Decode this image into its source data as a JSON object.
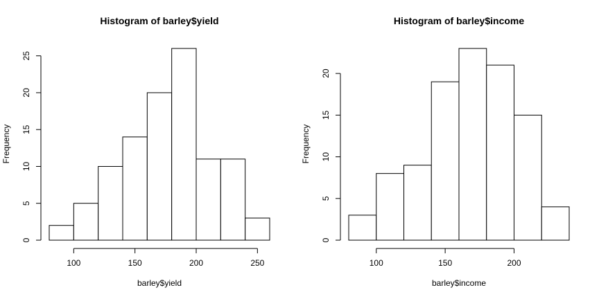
{
  "chart_data": [
    {
      "type": "histogram",
      "title": "Histogram of barley$yield",
      "xlabel": "barley$yield",
      "ylabel": "Frequency",
      "bins": [
        {
          "start": 80,
          "end": 100,
          "count": 2
        },
        {
          "start": 100,
          "end": 120,
          "count": 5
        },
        {
          "start": 120,
          "end": 140,
          "count": 10
        },
        {
          "start": 140,
          "end": 160,
          "count": 14
        },
        {
          "start": 160,
          "end": 180,
          "count": 20
        },
        {
          "start": 180,
          "end": 200,
          "count": 26
        },
        {
          "start": 200,
          "end": 220,
          "count": 11
        },
        {
          "start": 220,
          "end": 240,
          "count": 11
        },
        {
          "start": 240,
          "end": 260,
          "count": 3
        }
      ],
      "xlim": [
        80,
        260
      ],
      "ylim": [
        0,
        26
      ],
      "x_ticks": [
        100,
        150,
        200,
        250
      ],
      "y_ticks": [
        0,
        5,
        10,
        15,
        20,
        25
      ]
    },
    {
      "type": "histogram",
      "title": "Histogram of barley$income",
      "xlabel": "barley$income",
      "ylabel": "Frequency",
      "bins": [
        {
          "start": 80,
          "end": 100,
          "count": 3
        },
        {
          "start": 100,
          "end": 120,
          "count": 8
        },
        {
          "start": 120,
          "end": 140,
          "count": 9
        },
        {
          "start": 140,
          "end": 160,
          "count": 19
        },
        {
          "start": 160,
          "end": 180,
          "count": 23
        },
        {
          "start": 180,
          "end": 200,
          "count": 21
        },
        {
          "start": 200,
          "end": 220,
          "count": 15
        },
        {
          "start": 220,
          "end": 240,
          "count": 4
        }
      ],
      "xlim": [
        80,
        240
      ],
      "ylim": [
        0,
        23
      ],
      "x_ticks": [
        100,
        150,
        200
      ],
      "y_ticks": [
        0,
        5,
        10,
        15,
        20
      ]
    }
  ]
}
